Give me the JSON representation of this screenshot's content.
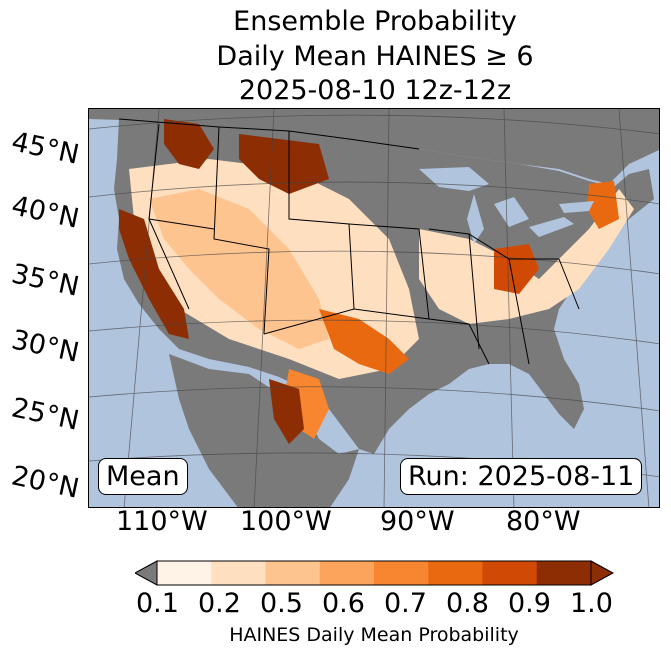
{
  "title": {
    "line1": "Ensemble Probability",
    "line2": "Daily Mean HAINES ≥ 6",
    "line3": "2025-08-10 12z-12z"
  },
  "map": {
    "lat_labels": [
      "45°N",
      "40°N",
      "35°N",
      "30°N",
      "25°N",
      "20°N"
    ],
    "lon_labels": [
      "110°W",
      "100°W",
      "90°W",
      "80°W"
    ],
    "stat_label": "Mean",
    "run_label": "Run: 2025-08-11",
    "ocean_color": "#b0c4de",
    "nodata_color": "#7a7a7a"
  },
  "colorbar": {
    "ticks": [
      "0.1",
      "0.2",
      "0.5",
      "0.6",
      "0.7",
      "0.8",
      "0.9",
      "1.0"
    ],
    "colors": [
      "#fff2e6",
      "#fedfc0",
      "#fdc48f",
      "#fda45c",
      "#f8852f",
      "#e96910",
      "#d14a05",
      "#8c2d04"
    ],
    "under_color": "#7a7a7a",
    "label": "HAINES Daily Mean Probability"
  }
}
